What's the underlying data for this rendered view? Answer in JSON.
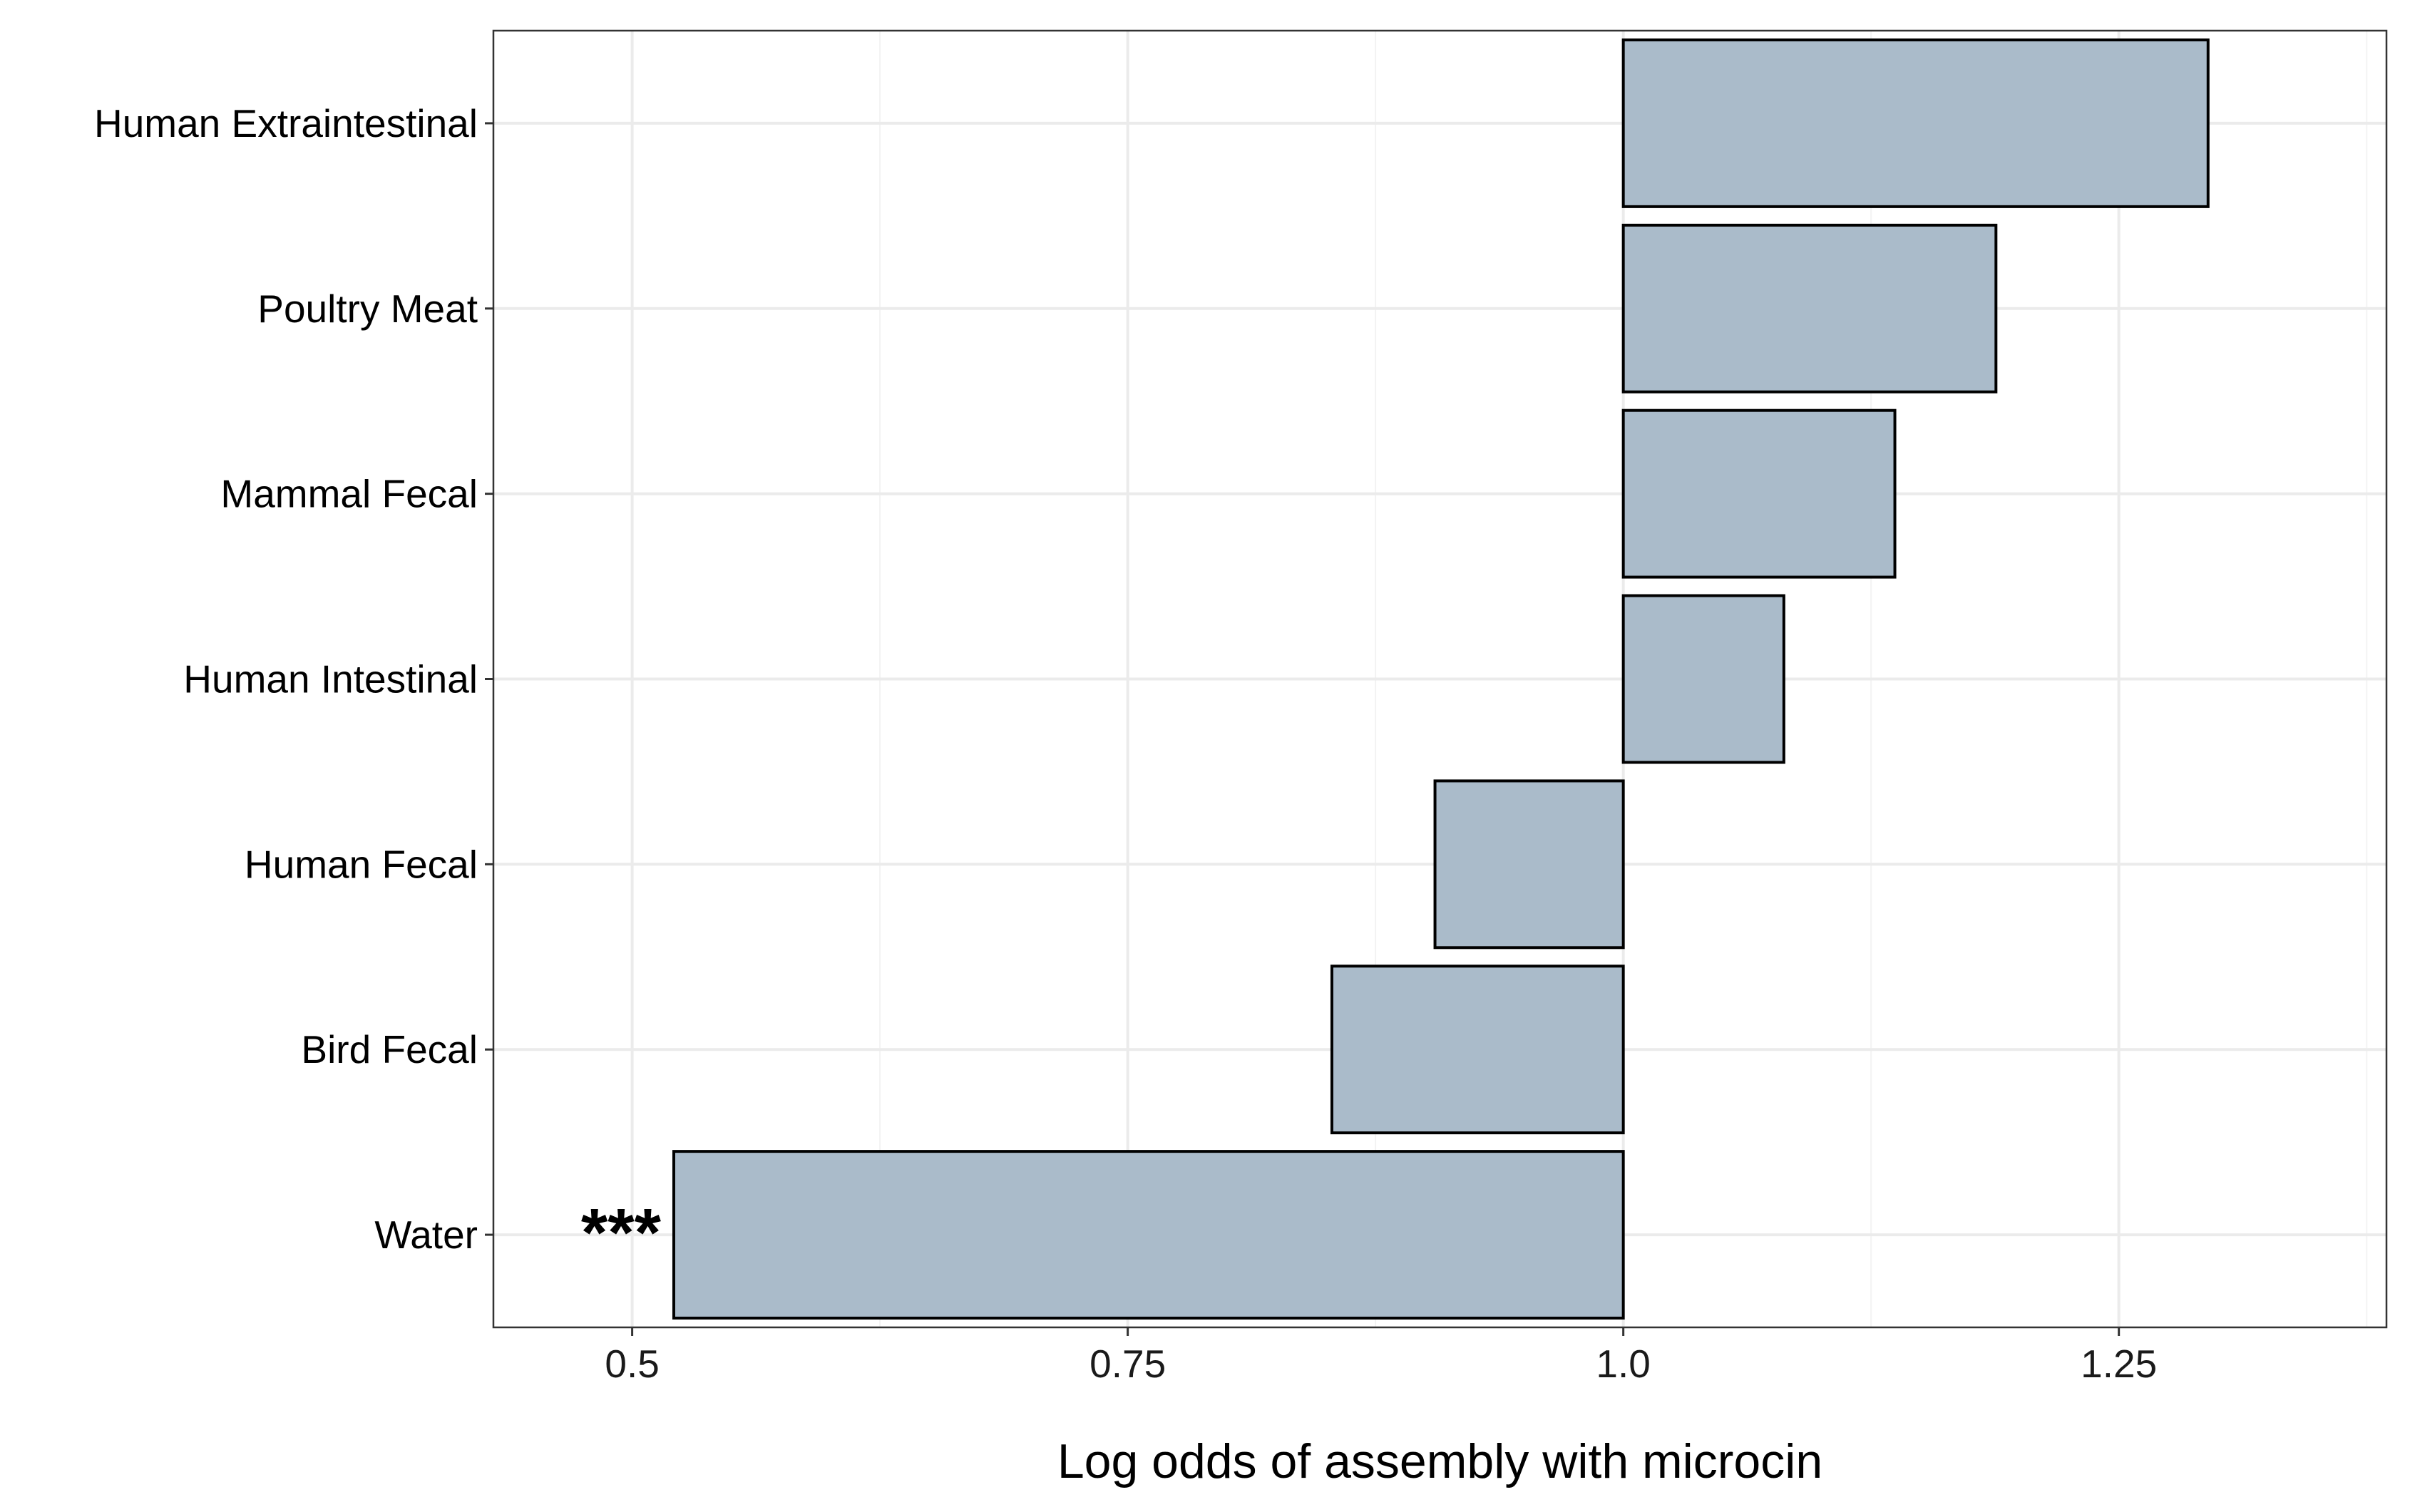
{
  "chart_data": {
    "type": "bar",
    "orientation": "horizontal",
    "baseline": 1.0,
    "categories": [
      "Human Extraintestinal",
      "Poultry Meat",
      "Mammal Fecal",
      "Human Intestinal",
      "Human Fecal",
      "Bird Fecal",
      "Water"
    ],
    "values": [
      1.295,
      1.188,
      1.137,
      1.081,
      0.905,
      0.853,
      0.521
    ],
    "annotations": [
      "",
      "",
      "",
      "",
      "",
      "",
      "***"
    ],
    "title": "",
    "xlabel": "Log odds of assembly with microcin",
    "ylabel": "",
    "xlim": [
      0.43,
      1.385
    ],
    "xticks": [
      0.5,
      0.75,
      1.0,
      1.25
    ],
    "xtick_labels": [
      "0.5",
      "0.75",
      "1.0",
      "1.25"
    ],
    "grid": true,
    "legend": "none",
    "colors": {
      "bar_fill": "#aabbca",
      "bar_stroke": "#000000",
      "grid_major": "#ebebeb",
      "grid_minor": "#f3f3f3",
      "panel_border": "#333333",
      "text": "#000000"
    }
  }
}
